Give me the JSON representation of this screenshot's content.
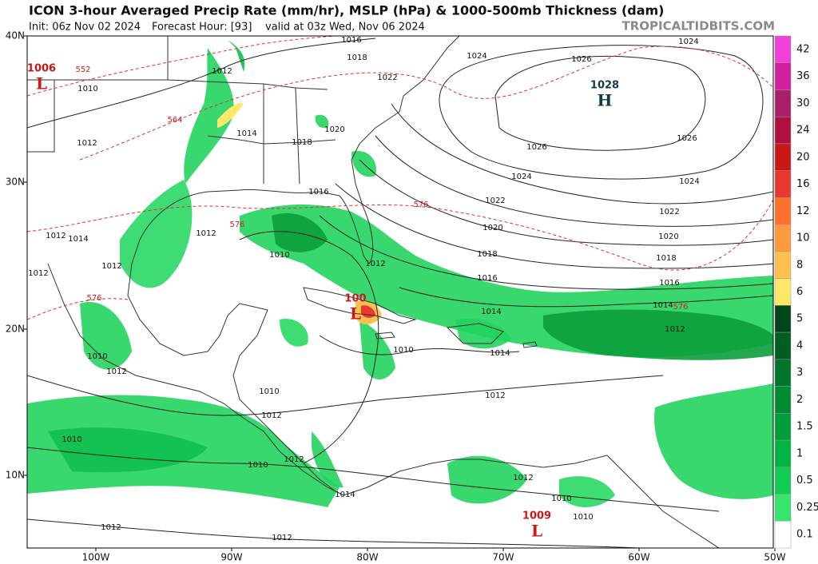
{
  "header": {
    "title": "ICON 3-hour Averaged Precip Rate (mm/hr), MSLP (hPa) & 1000-500mb Thickness (dam)",
    "init": "Init: 06z Nov 02 2024",
    "forecast_hour": "Forecast Hour: [93]",
    "valid": "valid at 03z Wed, Nov 06 2024",
    "site": "TROPICALTIDBITS.COM"
  },
  "axes": {
    "latitude_labels": [
      "40N",
      "30N",
      "20N",
      "10N"
    ],
    "longitude_labels": [
      "100W",
      "90W",
      "80W",
      "70W",
      "60W",
      "50W"
    ]
  },
  "colorbar": {
    "labels": [
      42,
      36,
      30,
      24,
      20,
      16,
      12,
      10,
      8,
      6,
      5,
      4,
      3,
      2,
      1.5,
      1,
      0.5,
      0.25,
      0.1
    ],
    "colors": [
      "#f040d8",
      "#d0209e",
      "#a8206c",
      "#b01040",
      "#c81818",
      "#e83830",
      "#ff7030",
      "#ff9a40",
      "#ffc050",
      "#ffe868",
      "#00461a",
      "#005e22",
      "#00742a",
      "#008a32",
      "#009e3a",
      "#00b444",
      "#10cc52",
      "#38e46c",
      "#ffffff"
    ]
  },
  "pressure_centers": [
    {
      "value": "1028",
      "symbol": "H"
    },
    {
      "value": "1006",
      "symbol": "L"
    },
    {
      "value": "100",
      "symbol": "L"
    },
    {
      "value": "1009",
      "symbol": "L"
    }
  ],
  "isobar_labels": [
    "1024",
    "1026",
    "1024",
    "1016",
    "1018",
    "1022",
    "1012",
    "1010",
    "1012",
    "1014",
    "1018",
    "1020",
    "1026",
    "1026",
    "1024",
    "1024",
    "1022",
    "1022",
    "1020",
    "1020",
    "1018",
    "1018",
    "1016",
    "1016",
    "1014",
    "1014",
    "1012",
    "1016",
    "1012",
    "1010",
    "1012",
    "1012",
    "1014",
    "1012",
    "1012",
    "1010",
    "1014",
    "1012",
    "1010",
    "1012",
    "1010",
    "1012",
    "1010",
    "1012",
    "1010",
    "1014",
    "1012",
    "1010",
    "1010",
    "1012",
    "1012"
  ],
  "thickness_labels": [
    "552",
    "564",
    "576",
    "576",
    "576",
    "576"
  ]
}
